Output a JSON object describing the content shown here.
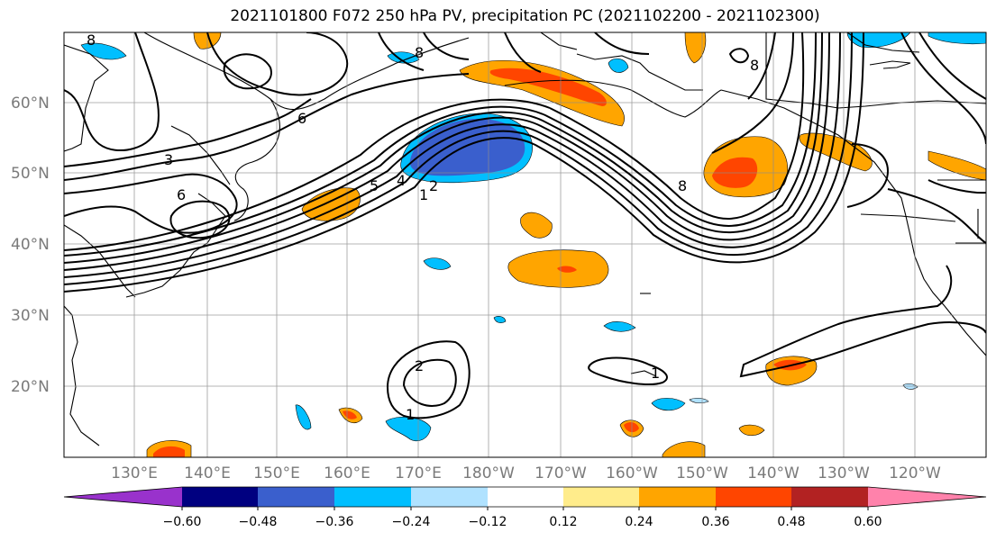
{
  "title": "2021101800 F072 250 hPa PV, precipitation PC (2021102200 - 2021102300)",
  "map": {
    "lat_labels": [
      "60°N",
      "50°N",
      "40°N",
      "30°N",
      "20°N"
    ],
    "lon_labels": [
      "130°E",
      "140°E",
      "150°E",
      "160°E",
      "170°E",
      "180°W",
      "170°W",
      "160°W",
      "150°W",
      "140°W",
      "130°W",
      "120°W"
    ],
    "pv_contour_labels": [
      "8",
      "8",
      "6",
      "3",
      "6",
      "5",
      "4",
      "1",
      "2",
      "8",
      "8",
      "2",
      "1",
      "1"
    ]
  },
  "colorbar": {
    "colors": [
      "#9932cc",
      "#000080",
      "#3a5fcd",
      "#00bfff",
      "#b0e2ff",
      "#ffffff",
      "#ffec8b",
      "#ffa500",
      "#ff4500",
      "#b22222",
      "#ff82ab"
    ],
    "tick_labels": [
      "−0.60",
      "−0.48",
      "−0.36",
      "−0.24",
      "−0.12",
      "0.12",
      "0.24",
      "0.36",
      "0.48",
      "0.60"
    ]
  }
}
